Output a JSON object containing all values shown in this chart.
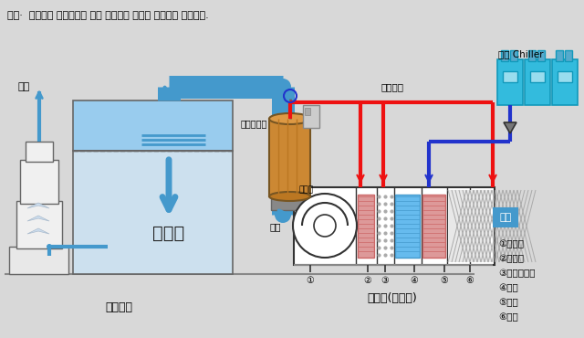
{
  "title": "가열·  가습에는 보일러등에 의한 증기외의 것들이 사용되어 왔습니다.",
  "bg_color": "#d8d8d8",
  "label_dojangsil": "도장실",
  "label_dojanbu": "도장부스",
  "label_gongjogi": "공조기(외조기)",
  "label_baegi": "배기",
  "label_geuggi": "급기",
  "label_jeunggiboiler": "증기보일러",
  "label_jeunggibaegwan": "증기배관",
  "label_naengsu_chiller": "냉수 Chiller",
  "label_oegi": "외기",
  "label_songpunggi": "송풍기",
  "legend_items": [
    "①송풍기",
    "②재가열",
    "③증기가습기",
    "④냉각",
    "⑤예열",
    "⑥필터"
  ],
  "num_labels": [
    [
      "①",
      340
    ],
    [
      "②",
      403
    ],
    [
      "③",
      422
    ],
    [
      "④",
      454
    ],
    [
      "⑤",
      487
    ],
    [
      "⑥",
      515
    ]
  ],
  "pipe_red": "#ee1111",
  "pipe_blue": "#2233cc",
  "light_blue_flow": "#4499cc",
  "light_blue_fill": "#aaccdd",
  "booth_blue_top": "#99ccee",
  "booth_blue_bottom": "#cce0ee",
  "orange_brown": "#cc8833",
  "chiller_cyan": "#33bbdd",
  "white": "#ffffff",
  "box_outline": "#666666",
  "dark": "#333333",
  "gray_medium": "#888888",
  "pink_coil": "#dd9999",
  "blue_coil": "#66bbee",
  "gray_mesh": "#bbbbbb"
}
